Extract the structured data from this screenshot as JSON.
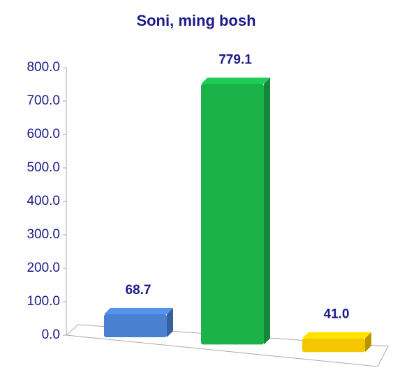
{
  "chart_data": {
    "type": "bar3d",
    "title": "Soni, ming bosh",
    "categories": [
      null,
      null,
      null
    ],
    "values": [
      68.7,
      779.1,
      41.0
    ],
    "value_labels": [
      "68.7",
      "779.1",
      "41.0"
    ],
    "colors": [
      "#4a80d0",
      "#1bb24a",
      "#f3c600"
    ],
    "ylim": [
      0,
      800
    ],
    "yticks": [
      {
        "value": 0,
        "label": "0.0"
      },
      {
        "value": 100,
        "label": "100.0"
      },
      {
        "value": 200,
        "label": "200.0"
      },
      {
        "value": 300,
        "label": "300.0"
      },
      {
        "value": 400,
        "label": "400.0"
      },
      {
        "value": 500,
        "label": "500.0"
      },
      {
        "value": 600,
        "label": "600.0"
      },
      {
        "value": 700,
        "label": "700.0"
      },
      {
        "value": 800,
        "label": "800.0"
      }
    ],
    "grid": false
  }
}
